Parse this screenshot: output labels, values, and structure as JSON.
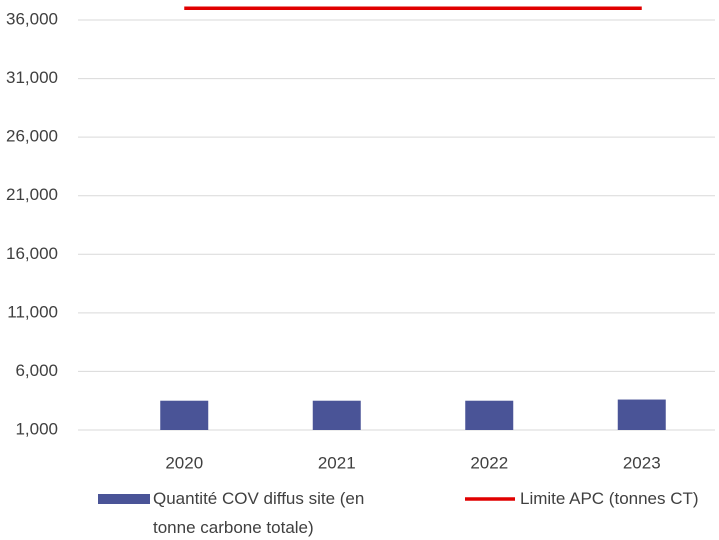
{
  "chart_data": {
    "type": "bar",
    "categories": [
      "2020",
      "2021",
      "2022",
      "2023"
    ],
    "series": [
      {
        "name": "Quantité COV diffus site (en tonne carbone totale)",
        "type": "bar",
        "color": "#4a5497",
        "values": [
          3500,
          3500,
          3500,
          3600
        ]
      },
      {
        "name": "Limite APC (tonnes CT)",
        "type": "line",
        "color": "#e00000",
        "values": [
          37000,
          37000,
          37000,
          37000
        ]
      }
    ],
    "ylim": [
      1000,
      37000
    ],
    "yticks": [
      {
        "value": 1000,
        "label": "1,000"
      },
      {
        "value": 6000,
        "label": "6,000"
      },
      {
        "value": 11000,
        "label": "11,000"
      },
      {
        "value": 16000,
        "label": "16,000"
      },
      {
        "value": 21000,
        "label": "21,000"
      },
      {
        "value": 26000,
        "label": "26,000"
      },
      {
        "value": 31000,
        "label": "31,000"
      },
      {
        "value": 36000,
        "label": "36,000"
      }
    ],
    "grid": true,
    "legend": "bottom"
  }
}
